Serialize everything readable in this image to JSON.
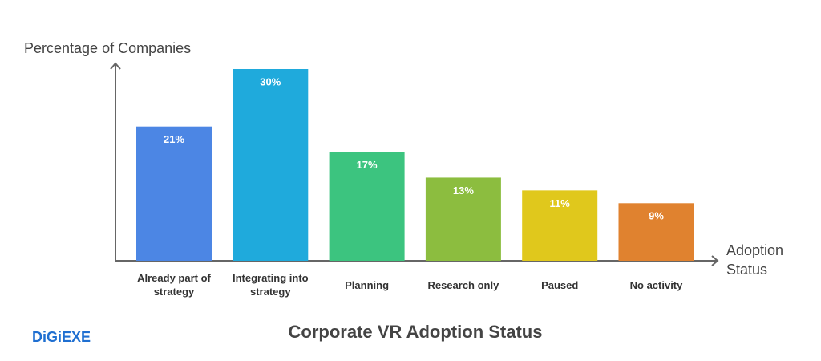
{
  "chart_data": {
    "type": "bar",
    "title": "Corporate VR Adoption Status",
    "y_label": "Percentage of Companies",
    "x_label": "Adoption Status",
    "categories": [
      "Already part of strategy",
      "Integrating into strategy",
      "Planning",
      "Research only",
      "Paused",
      "No activity"
    ],
    "values": [
      21,
      30,
      17,
      13,
      11,
      9
    ],
    "value_labels": [
      "21%",
      "30%",
      "17%",
      "13%",
      "11%",
      "9%"
    ],
    "colors": [
      "#4c86e4",
      "#1faadc",
      "#3cc47f",
      "#8cbd3f",
      "#e0c81c",
      "#e0822f"
    ],
    "ylim": [
      0,
      30
    ]
  },
  "logo": "DiGiEXE"
}
